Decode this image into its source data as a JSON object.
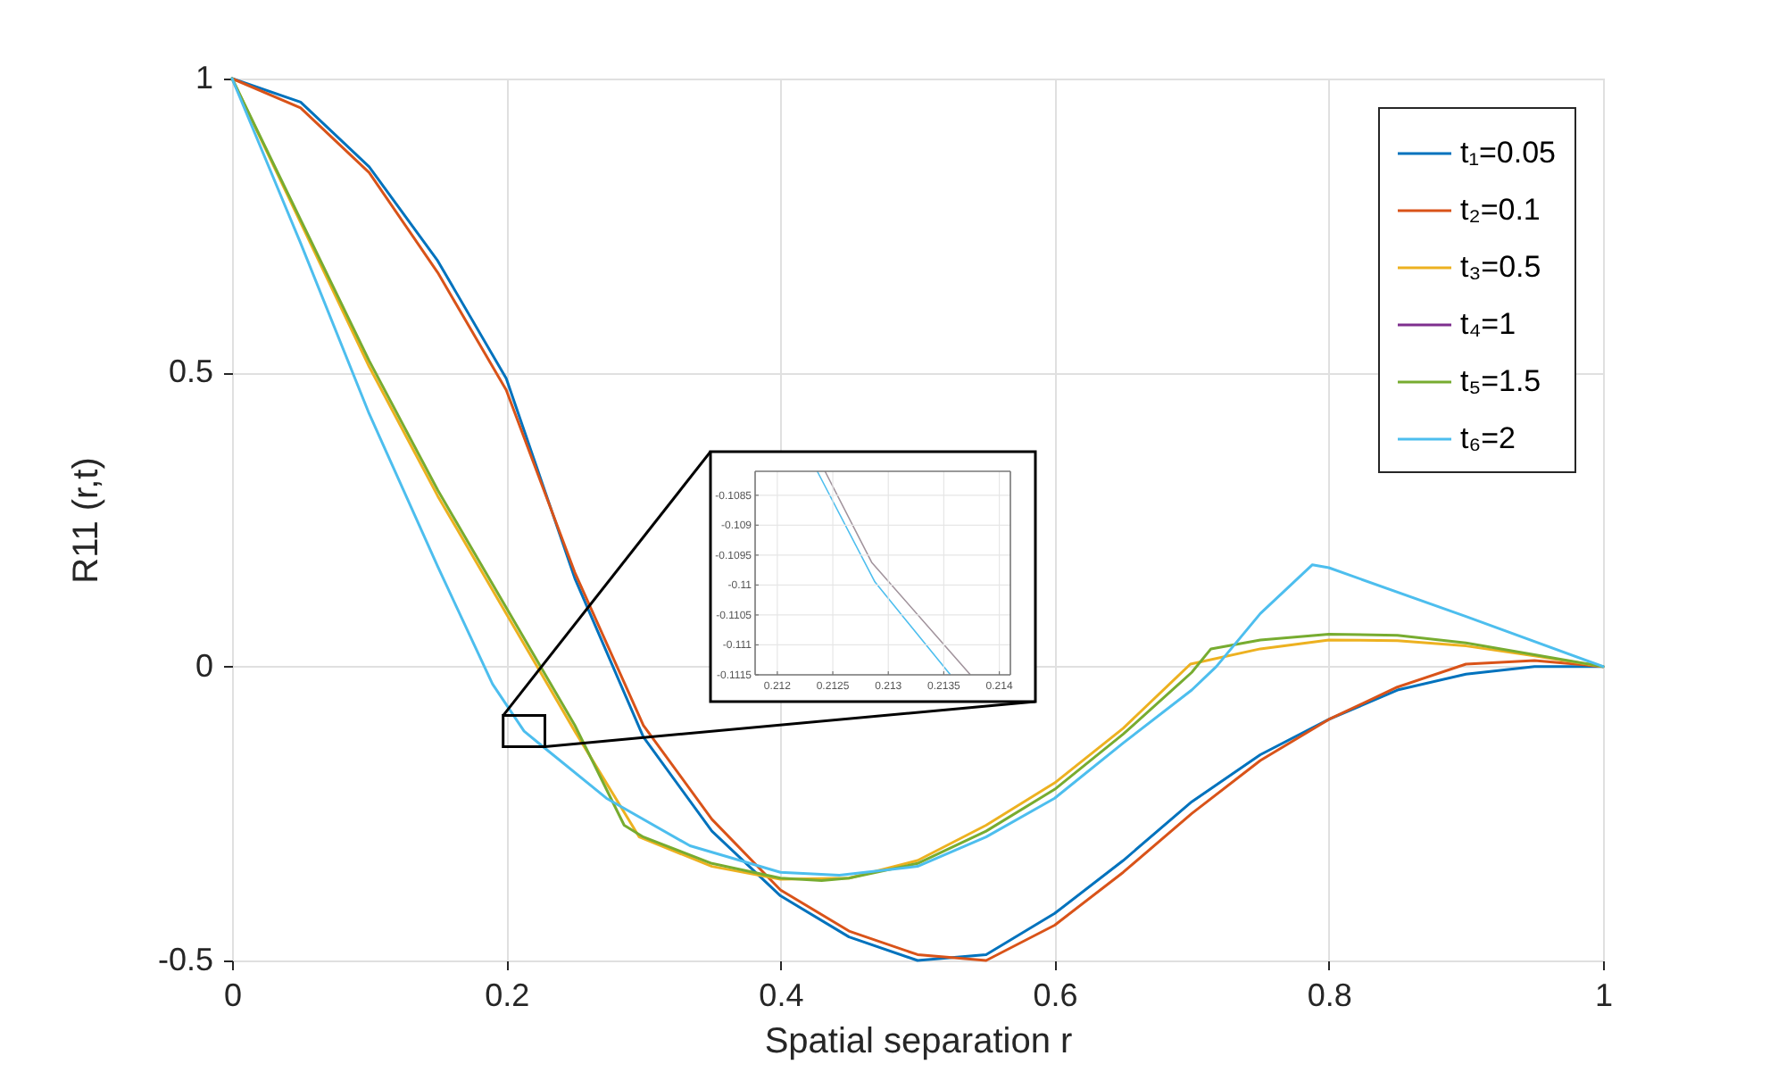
{
  "chart_data": [
    {
      "type": "line",
      "xlabel": "Spatial separation r",
      "ylabel": "R11 (r,t)",
      "xlim": [
        0,
        1
      ],
      "ylim": [
        -0.5,
        1
      ],
      "xticks": [
        0,
        0.2,
        0.4,
        0.6,
        0.8,
        1
      ],
      "yticks": [
        -0.5,
        0,
        0.5,
        1
      ],
      "grid": true,
      "legend": "top right",
      "series": [
        {
          "name": "t₁=0.05",
          "color": "#0072bd",
          "x": [
            0,
            0.05,
            0.1,
            0.15,
            0.2,
            0.25,
            0.3,
            0.35,
            0.4,
            0.45,
            0.5,
            0.55,
            0.6,
            0.65,
            0.7,
            0.75,
            0.8,
            0.85,
            0.9,
            0.95,
            1
          ],
          "values": [
            1,
            0.96,
            0.85,
            0.69,
            0.49,
            0.15,
            -0.12,
            -0.28,
            -0.39,
            -0.46,
            -0.5,
            -0.49,
            -0.42,
            -0.33,
            -0.23,
            -0.15,
            -0.09,
            -0.04,
            -0.013,
            0,
            0
          ]
        },
        {
          "name": "t₂=0.1",
          "color": "#d95319",
          "x": [
            0,
            0.05,
            0.1,
            0.15,
            0.2,
            0.25,
            0.3,
            0.35,
            0.4,
            0.45,
            0.5,
            0.55,
            0.6,
            0.65,
            0.7,
            0.75,
            0.8,
            0.85,
            0.9,
            0.95,
            1
          ],
          "values": [
            1,
            0.95,
            0.84,
            0.67,
            0.47,
            0.16,
            -0.1,
            -0.26,
            -0.38,
            -0.45,
            -0.49,
            -0.5,
            -0.44,
            -0.35,
            -0.25,
            -0.16,
            -0.09,
            -0.035,
            0.004,
            0.01,
            0
          ]
        },
        {
          "name": "t₃=0.5",
          "color": "#edb120",
          "x": [
            0,
            0.05,
            0.1,
            0.15,
            0.2,
            0.25,
            0.297,
            0.35,
            0.4,
            0.45,
            0.5,
            0.55,
            0.6,
            0.65,
            0.699,
            0.75,
            0.8,
            0.85,
            0.9,
            0.95,
            1
          ],
          "values": [
            1,
            0.755,
            0.51,
            0.29,
            0.09,
            -0.11,
            -0.29,
            -0.34,
            -0.362,
            -0.36,
            -0.33,
            -0.27,
            -0.198,
            -0.105,
            0.004,
            0.03,
            0.045,
            0.044,
            0.035,
            0.018,
            0
          ]
        },
        {
          "name": "t₄=1",
          "color": "#7e2f8e",
          "values": [
            null
          ]
        },
        {
          "name": "t₅=1.5",
          "color": "#77ac30",
          "x": [
            0,
            0.05,
            0.1,
            0.15,
            0.2,
            0.25,
            0.286,
            0.3,
            0.35,
            0.4,
            0.43,
            0.45,
            0.5,
            0.55,
            0.6,
            0.65,
            0.7,
            0.714,
            0.75,
            0.8,
            0.85,
            0.9,
            0.95,
            1
          ],
          "values": [
            1,
            0.76,
            0.52,
            0.3,
            0.1,
            -0.1,
            -0.27,
            -0.29,
            -0.335,
            -0.36,
            -0.364,
            -0.36,
            -0.335,
            -0.28,
            -0.209,
            -0.115,
            -0.01,
            0.03,
            0.045,
            0.055,
            0.053,
            0.04,
            0.02,
            0
          ]
        },
        {
          "name": "t₆=2",
          "color": "#4dbeee",
          "x": [
            0,
            0.05,
            0.1,
            0.15,
            0.19,
            0.213,
            0.225,
            0.273,
            0.334,
            0.4,
            0.443,
            0.5,
            0.55,
            0.6,
            0.65,
            0.7,
            0.718,
            0.75,
            0.788,
            0.8,
            0.9,
            1
          ],
          "values": [
            1,
            0.72,
            0.43,
            0.17,
            -0.03,
            -0.11,
            -0.133,
            -0.224,
            -0.305,
            -0.35,
            -0.355,
            -0.34,
            -0.29,
            -0.224,
            -0.13,
            -0.04,
            0,
            0.09,
            0.173,
            0.168,
            0.085,
            0
          ]
        }
      ]
    },
    {
      "type": "line",
      "xlim": [
        0.2118,
        0.2141
      ],
      "ylim": [
        -0.1115,
        -0.1081
      ],
      "xticks": [
        0.212,
        0.2125,
        0.213,
        0.2135,
        0.214
      ],
      "yticks": [
        -0.1115,
        -0.111,
        -0.1105,
        -0.11,
        -0.1095,
        -0.109,
        -0.1085
      ],
      "grid": true,
      "series": [
        {
          "color": "#4dbeee",
          "x": [
            0.21236,
            0.21288,
            0.21356
          ],
          "values": [
            -0.1081,
            -0.10995,
            -0.1115
          ]
        },
        {
          "color": "#a1939c",
          "x": [
            0.21243,
            0.21285,
            0.21374
          ],
          "values": [
            -0.1081,
            -0.10962,
            -0.1115
          ]
        }
      ]
    }
  ]
}
